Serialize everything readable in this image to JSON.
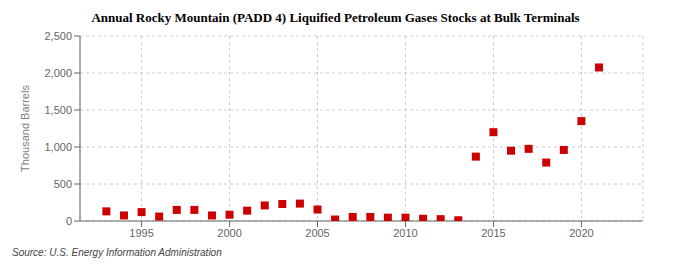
{
  "chart_data": {
    "type": "scatter",
    "title": "Annual Rocky Mountain (PADD 4) Liquified Petroleum Gases Stocks at Bulk Terminals",
    "ylabel": "Thousand Barrels",
    "annotations": [
      "Source: U.S. Energy Information Administration"
    ],
    "x": [
      1993,
      1994,
      1995,
      1996,
      1997,
      1998,
      1999,
      2000,
      2001,
      2002,
      2003,
      2004,
      2005,
      2006,
      2007,
      2008,
      2009,
      2010,
      2011,
      2012,
      2013,
      2014,
      2015,
      2016,
      2017,
      2018,
      2019,
      2020,
      2021
    ],
    "values": [
      130,
      75,
      120,
      60,
      150,
      150,
      75,
      85,
      140,
      210,
      230,
      235,
      155,
      20,
      55,
      55,
      45,
      45,
      30,
      25,
      10,
      870,
      1200,
      950,
      975,
      790,
      960,
      1350,
      2075
    ],
    "color": "#cc0000",
    "marker": "square",
    "xlim": [
      1991.5,
      2023.5
    ],
    "ylim": [
      0,
      2500
    ],
    "xticks": [
      1995,
      2000,
      2005,
      2010,
      2015,
      2020
    ],
    "yticks": [
      0,
      500,
      {
        "value": 1000,
        "label": "1,000"
      },
      {
        "value": 1500,
        "label": "1,500"
      },
      {
        "value": 2000,
        "label": "2,000"
      },
      {
        "value": 2500,
        "label": "2,500"
      }
    ],
    "grid": true
  }
}
